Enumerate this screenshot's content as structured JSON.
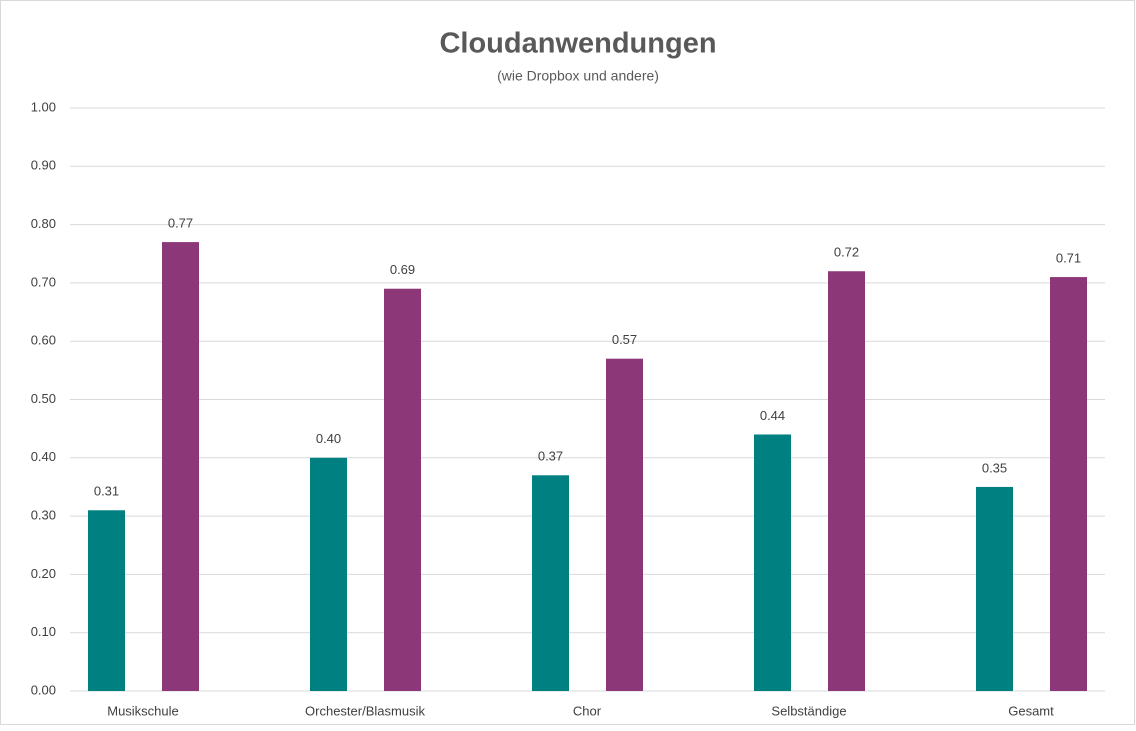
{
  "chart_data": {
    "type": "bar",
    "title": "Cloudanwendungen",
    "subtitle": "(wie Dropbox und andere)",
    "categories": [
      "Musikschule",
      "Orchester/Blasmusik",
      "Chor",
      "Selbständige",
      "Gesamt"
    ],
    "series": [
      {
        "color": "#008080",
        "values": [
          0.31,
          0.4,
          0.37,
          0.44,
          0.35
        ],
        "value_labels": [
          "0.31",
          "0.40",
          "0.37",
          "0.44",
          "0.35"
        ]
      },
      {
        "color": "#8b3778",
        "values": [
          0.77,
          0.69,
          0.57,
          0.72,
          0.71
        ],
        "value_labels": [
          "0.77",
          "0.69",
          "0.57",
          "0.72",
          "0.71"
        ]
      }
    ],
    "ylim": [
      0,
      1
    ],
    "yticks": [
      {
        "value": 0,
        "label": "0.00"
      },
      {
        "value": 0.1,
        "label": "0.10"
      },
      {
        "value": 0.2,
        "label": "0.20"
      },
      {
        "value": 0.3,
        "label": "0.30"
      },
      {
        "value": 0.4,
        "label": "0.40"
      },
      {
        "value": 0.5,
        "label": "0.50"
      },
      {
        "value": 0.6,
        "label": "0.60"
      },
      {
        "value": 0.7,
        "label": "0.70"
      },
      {
        "value": 0.8,
        "label": "0.80"
      },
      {
        "value": 0.9,
        "label": "0.90"
      },
      {
        "value": 1,
        "label": "1.00"
      }
    ],
    "grid": true
  }
}
